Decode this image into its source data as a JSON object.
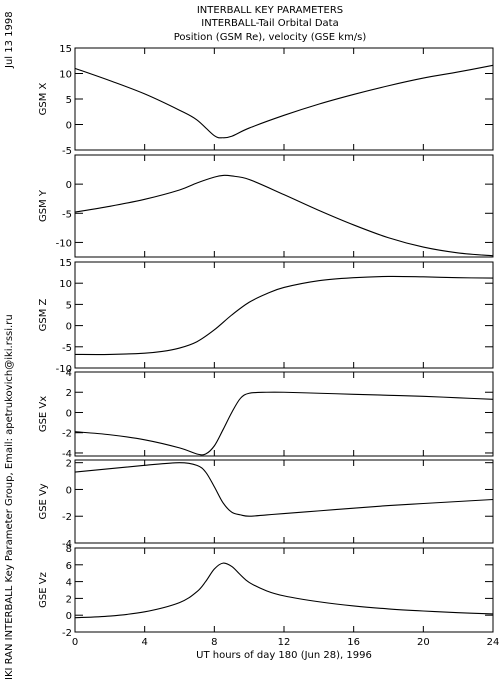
{
  "header": {
    "title_lines": [
      "INTERBALL KEY PARAMETERS",
      "INTERBALL-Tail Orbital Data",
      "Position (GSM Re), velocity (GSE km/s)"
    ],
    "date_stamp": "Jul 13 1998",
    "side_credit": "IKI RAN INTERBALL Key Parameter Group, Email: apetrukovich@iki.rssi.ru"
  },
  "chart_data": [
    {
      "type": "line",
      "ylabel": "GSM X",
      "xlim": [
        0,
        24
      ],
      "ylim": [
        -5,
        15
      ],
      "yticks": [
        -5,
        0,
        5,
        10,
        15
      ],
      "grid": false,
      "x": [
        0,
        2,
        4,
        6,
        7,
        8,
        8.5,
        9,
        10,
        12,
        14,
        16,
        18,
        20,
        22,
        24
      ],
      "values": [
        11,
        8.6,
        6.0,
        2.8,
        0.9,
        -2.2,
        -2.6,
        -2.3,
        -0.7,
        1.8,
        4.0,
        5.9,
        7.6,
        9.1,
        10.3,
        11.6
      ]
    },
    {
      "type": "line",
      "ylabel": "GSM Y",
      "xlim": [
        0,
        24
      ],
      "ylim": [
        -12.5,
        5
      ],
      "yticks": [
        -10,
        -5,
        0
      ],
      "grid": false,
      "x": [
        0,
        2,
        4,
        6,
        7,
        8,
        8.5,
        9,
        10,
        12,
        14,
        16,
        18,
        20,
        22,
        24
      ],
      "values": [
        -4.8,
        -3.8,
        -2.6,
        -1.0,
        0.2,
        1.2,
        1.5,
        1.4,
        0.8,
        -1.8,
        -4.5,
        -7.0,
        -9.2,
        -10.8,
        -11.8,
        -12.3
      ]
    },
    {
      "type": "line",
      "ylabel": "GSM Z",
      "xlim": [
        0,
        24
      ],
      "ylim": [
        -10,
        15
      ],
      "yticks": [
        -10,
        -5,
        0,
        5,
        10,
        15
      ],
      "grid": false,
      "x": [
        0,
        2,
        4,
        5,
        6,
        7,
        8,
        9,
        10,
        11,
        12,
        14,
        16,
        18,
        20,
        22,
        24
      ],
      "values": [
        -6.8,
        -6.8,
        -6.5,
        -6.1,
        -5.3,
        -3.8,
        -1.0,
        2.5,
        5.5,
        7.5,
        9.0,
        10.6,
        11.3,
        11.6,
        11.5,
        11.3,
        11.2
      ]
    },
    {
      "type": "line",
      "ylabel": "GSE Vx",
      "xlim": [
        0,
        24
      ],
      "ylim": [
        -4.3,
        4
      ],
      "yticks": [
        -4,
        -2,
        0,
        2,
        4
      ],
      "grid": false,
      "x": [
        0,
        2,
        4,
        6,
        7,
        7.5,
        8,
        8.5,
        9,
        9.5,
        10,
        11,
        12,
        14,
        16,
        18,
        20,
        22,
        24
      ],
      "values": [
        -1.9,
        -2.2,
        -2.7,
        -3.5,
        -4.1,
        -4.1,
        -3.3,
        -1.7,
        0.0,
        1.4,
        1.9,
        2.0,
        2.0,
        1.9,
        1.8,
        1.7,
        1.6,
        1.45,
        1.3
      ]
    },
    {
      "type": "line",
      "ylabel": "GSE Vy",
      "xlim": [
        0,
        24
      ],
      "ylim": [
        -4,
        2.2
      ],
      "yticks": [
        -4,
        -2,
        0,
        2
      ],
      "grid": false,
      "x": [
        0,
        2,
        4,
        6,
        7,
        7.5,
        8,
        8.5,
        9,
        9.5,
        10,
        11,
        12,
        14,
        16,
        18,
        20,
        22,
        24
      ],
      "values": [
        1.3,
        1.55,
        1.8,
        2.0,
        1.8,
        1.3,
        0.2,
        -1.0,
        -1.7,
        -1.9,
        -2.0,
        -1.9,
        -1.8,
        -1.6,
        -1.4,
        -1.2,
        -1.05,
        -0.9,
        -0.75
      ]
    },
    {
      "type": "line",
      "ylabel": "GSE Vz",
      "xlim": [
        0,
        24
      ],
      "ylim": [
        -2,
        8
      ],
      "yticks": [
        -2,
        0,
        2,
        4,
        6,
        8
      ],
      "grid": false,
      "xlabel": "UT hours of day 180 (Jun 28), 1996",
      "xticks": [
        0,
        4,
        8,
        12,
        16,
        20,
        24
      ],
      "x": [
        0,
        2,
        4,
        6,
        7,
        7.5,
        8,
        8.5,
        9,
        9.5,
        10,
        11,
        12,
        14,
        16,
        18,
        20,
        22,
        24
      ],
      "values": [
        -0.3,
        -0.1,
        0.4,
        1.5,
        2.8,
        4.0,
        5.5,
        6.2,
        5.8,
        4.8,
        3.9,
        2.9,
        2.3,
        1.6,
        1.1,
        0.75,
        0.5,
        0.3,
        0.15
      ]
    }
  ]
}
